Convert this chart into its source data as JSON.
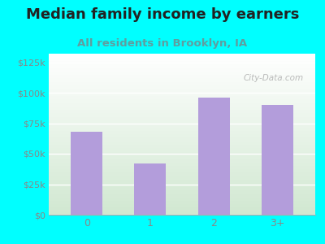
{
  "categories": [
    "0",
    "1",
    "2",
    "3+"
  ],
  "values": [
    68000,
    42000,
    96000,
    90000
  ],
  "bar_color": "#b39ddb",
  "background_color": "#00ffff",
  "plot_bg_top_left": "#d4edda",
  "plot_bg_top_right": "#ffffff",
  "plot_bg_bottom": "#d8eed8",
  "title": "Median family income by earners",
  "subtitle": "All residents in Brooklyn, IA",
  "title_fontsize": 13,
  "subtitle_fontsize": 9.5,
  "title_color": "#222222",
  "subtitle_color": "#5f9ea0",
  "yticks": [
    0,
    25000,
    50000,
    75000,
    100000,
    125000
  ],
  "ytick_labels": [
    "$0",
    "$25k",
    "$50k",
    "$75k",
    "$100k",
    "$125k"
  ],
  "ylim": [
    0,
    132000
  ],
  "tick_color": "#888888",
  "watermark": "City-Data.com",
  "grid_color": "#e0e0e0"
}
